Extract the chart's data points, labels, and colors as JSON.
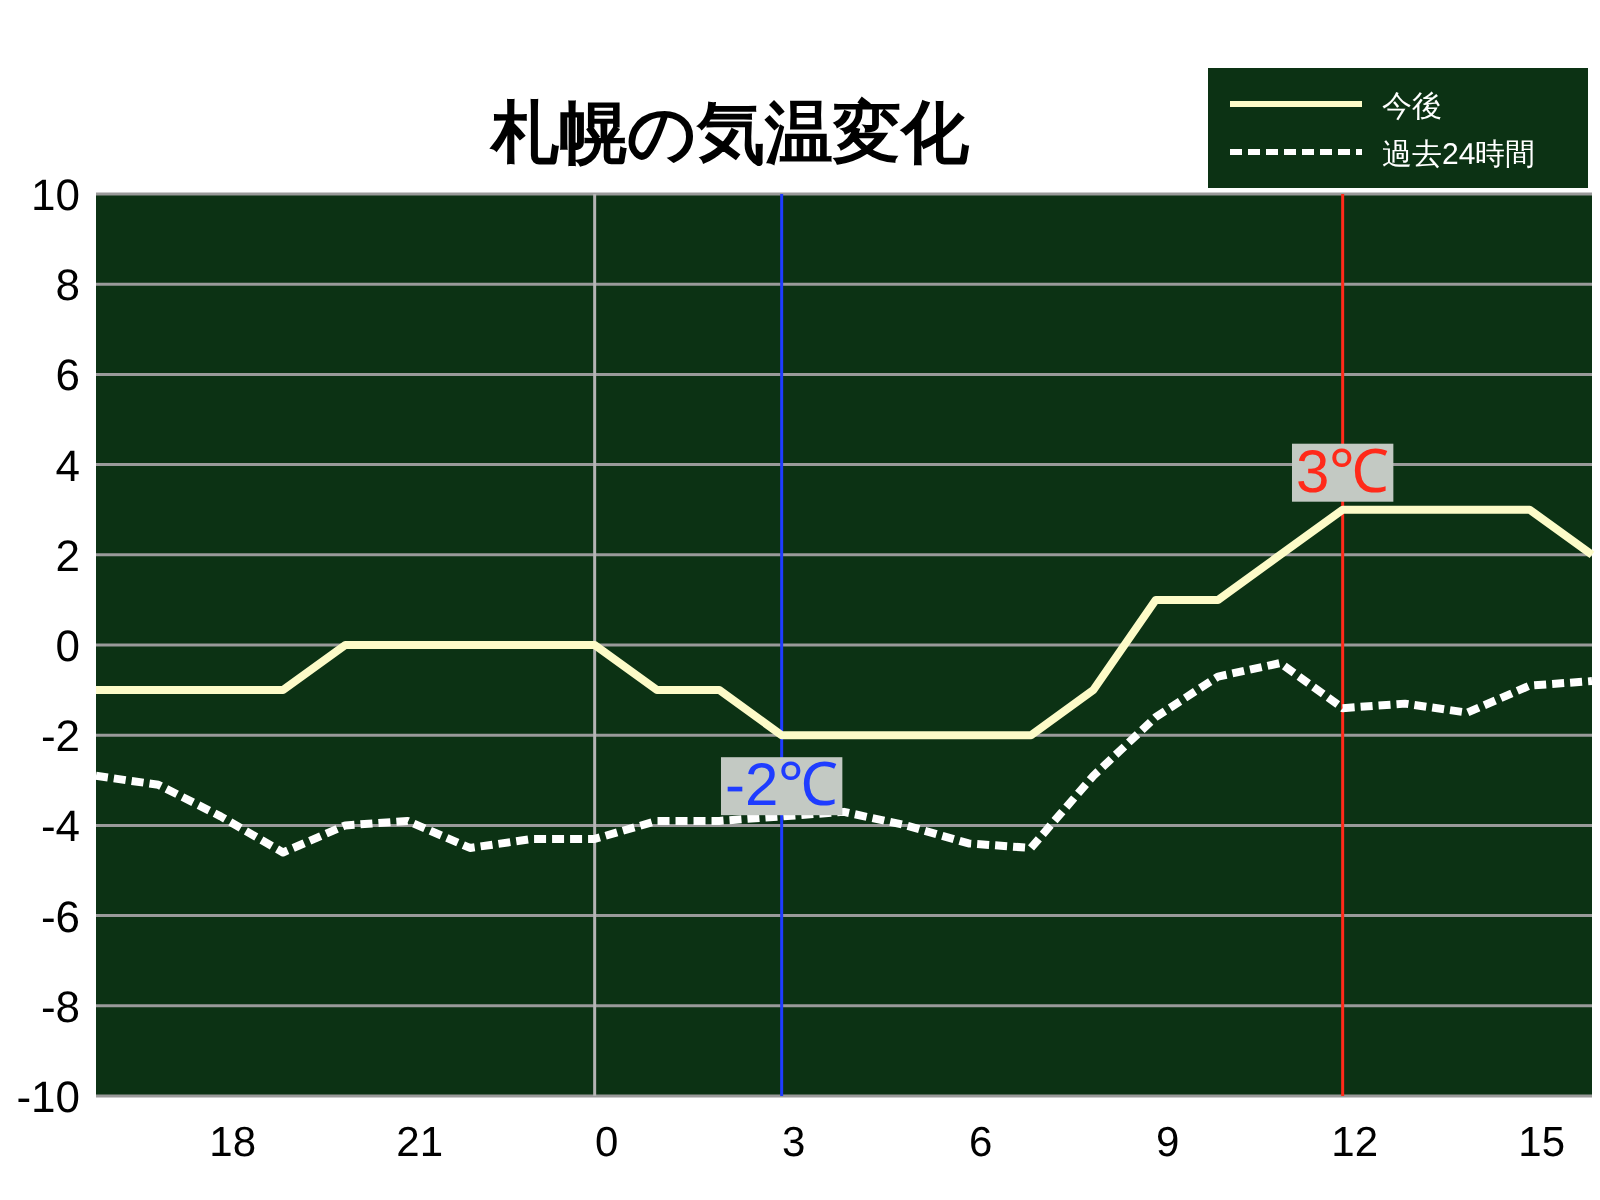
{
  "chart_data": {
    "type": "line",
    "title": "札幌の気温変化",
    "categories": [
      null,
      null,
      "18",
      null,
      null,
      "21",
      null,
      null,
      "0",
      null,
      null,
      "3",
      null,
      null,
      "6",
      null,
      null,
      "9",
      null,
      null,
      "12",
      null,
      null,
      "15",
      null
    ],
    "series": [
      {
        "name": "今後",
        "color": "#fdfbc8",
        "line_style": "solid",
        "values": [
          -1,
          -1,
          -1,
          -1,
          0,
          0,
          0,
          0,
          0,
          -1,
          -1,
          -2,
          -2,
          -2,
          -2,
          -2,
          -1,
          1,
          1,
          2,
          3,
          3,
          3,
          3,
          2
        ]
      },
      {
        "name": "過去24時間",
        "color": "#ffffff",
        "line_style": "dashed",
        "values": [
          -2.9,
          -3.1,
          -3.8,
          -4.6,
          -4.0,
          -3.9,
          -4.5,
          -4.3,
          -4.3,
          -3.9,
          -3.9,
          -3.8,
          -3.7,
          -4.0,
          -4.4,
          -4.5,
          -2.9,
          -1.6,
          -0.7,
          -0.4,
          -1.4,
          -1.3,
          -1.5,
          -0.9,
          -0.8
        ]
      }
    ],
    "ylim": [
      -10,
      10
    ],
    "yticks": [
      -10,
      -8,
      -6,
      -4,
      -2,
      0,
      2,
      4,
      6,
      8,
      10
    ],
    "grid": "y",
    "legend": "top right",
    "marker": "none",
    "ref_lines": [
      {
        "axis": "x",
        "value": "0",
        "color": "#b4b4b4"
      },
      {
        "axis": "x",
        "value": "3",
        "color": "#1f3cff"
      },
      {
        "axis": "x",
        "value": "12",
        "color": "#ff2a1a"
      }
    ],
    "annotations": [
      {
        "text": "-2℃",
        "x": "3",
        "y": -2
      },
      {
        "text": "3℃",
        "x": "12",
        "y": 3
      }
    ]
  }
}
